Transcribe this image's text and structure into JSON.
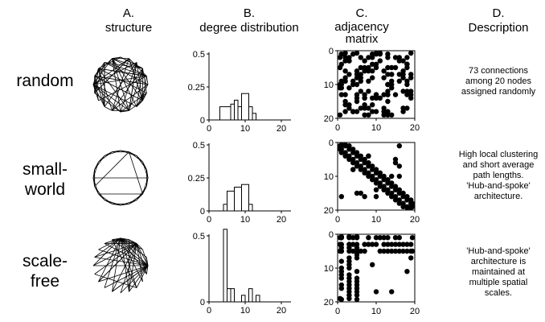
{
  "columns": {
    "a": {
      "letter": "A.",
      "title": "structure"
    },
    "b": {
      "letter": "B.",
      "title": "degree distribution"
    },
    "c": {
      "letter": "C.",
      "title_line1": "adjacency",
      "title_line2": "matrix"
    },
    "d": {
      "letter": "D.",
      "title": "Description"
    }
  },
  "rows": [
    {
      "label_lines": [
        "random"
      ],
      "description_lines": [
        "73 connections",
        "among 20 nodes",
        "assigned randomly"
      ],
      "degree_distribution": {
        "type": "histogram",
        "xlim": [
          0,
          20
        ],
        "ylim": [
          0,
          0.5
        ],
        "x_ticks": [
          "0",
          "10",
          "20"
        ],
        "y_ticks": [
          "0",
          "0.25",
          "0.5"
        ],
        "bins": [
          [
            3,
            6,
            0.1
          ],
          [
            6,
            7,
            0.12
          ],
          [
            7,
            8,
            0.15
          ],
          [
            8,
            9,
            0.1
          ],
          [
            9,
            11,
            0.2
          ],
          [
            11,
            12,
            0.1
          ],
          [
            12,
            13,
            0.05
          ]
        ]
      },
      "adjacency": {
        "n": 20,
        "x_ticks": [
          "0",
          "10",
          "20"
        ],
        "y_ticks": [
          "0",
          "10",
          "20"
        ],
        "pattern": "random"
      }
    },
    {
      "label_lines": [
        "small-",
        "world"
      ],
      "description_lines": [
        "High local clustering",
        "and short average",
        "path lengths.",
        "'Hub-and-spoke'",
        "architecture."
      ],
      "degree_distribution": {
        "type": "histogram",
        "xlim": [
          0,
          20
        ],
        "ylim": [
          0,
          0.5
        ],
        "x_ticks": [
          "0",
          "10",
          "20"
        ],
        "y_ticks": [
          "0",
          "0.25",
          "0.5"
        ],
        "bins": [
          [
            4,
            5,
            0.05
          ],
          [
            5,
            7,
            0.15
          ],
          [
            7,
            9,
            0.18
          ],
          [
            9,
            11,
            0.2
          ],
          [
            11,
            12,
            0.05
          ]
        ]
      },
      "adjacency": {
        "n": 20,
        "x_ticks": [
          "0",
          "10",
          "20"
        ],
        "y_ticks": [
          "0",
          "10",
          "20"
        ],
        "pattern": "smallworld"
      }
    },
    {
      "label_lines": [
        "scale-",
        "free"
      ],
      "description_lines": [
        "'Hub-and-spoke'",
        "architecture is",
        "maintained at",
        "multiple spatial",
        "scales."
      ],
      "degree_distribution": {
        "type": "histogram",
        "xlim": [
          0,
          20
        ],
        "ylim": [
          0,
          0.5
        ],
        "x_ticks": [
          "0",
          "10",
          "20"
        ],
        "y_ticks": [
          "0",
          "0.5"
        ],
        "bins": [
          [
            4,
            5,
            0.55
          ],
          [
            5,
            6,
            0.1
          ],
          [
            6,
            7,
            0.1
          ],
          [
            9,
            10,
            0.05
          ],
          [
            11,
            12,
            0.1
          ],
          [
            13,
            14,
            0.05
          ]
        ]
      },
      "adjacency": {
        "n": 20,
        "x_ticks": [
          "0",
          "10",
          "20"
        ],
        "y_ticks": [
          "0",
          "10",
          "20"
        ],
        "pattern": "scalefree"
      }
    }
  ]
}
